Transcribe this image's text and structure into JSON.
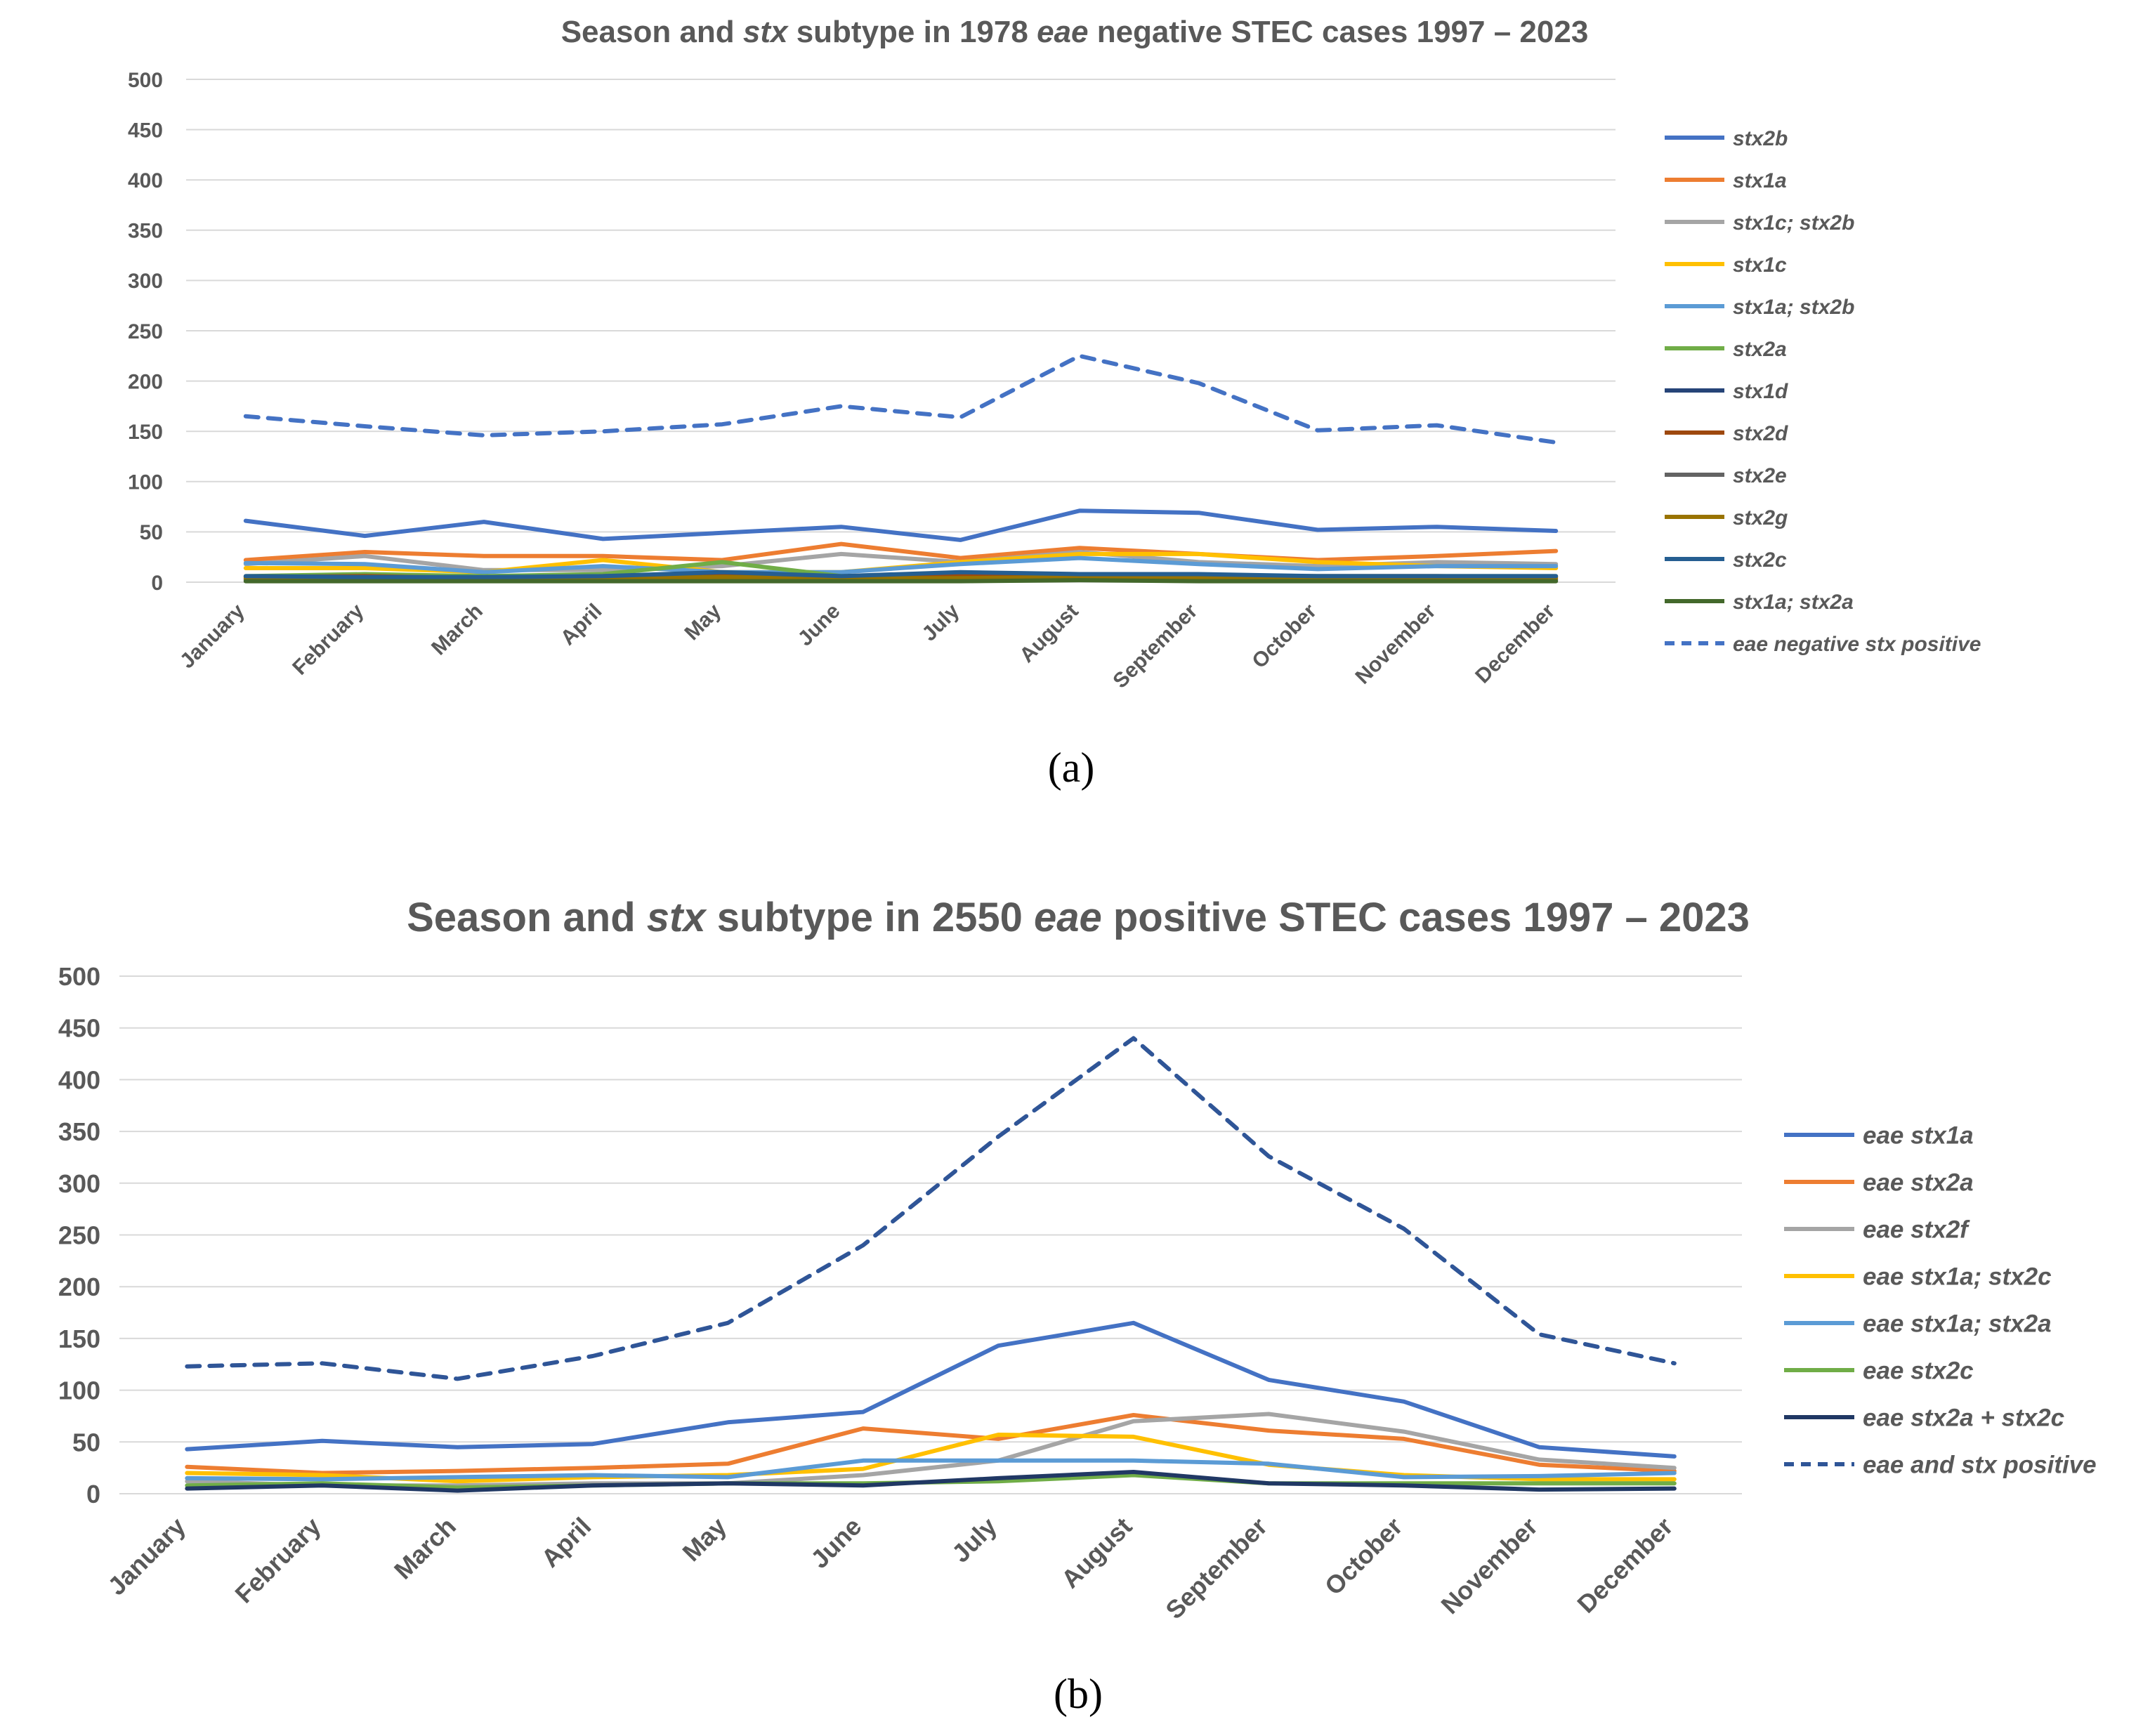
{
  "captions": [
    "(a)",
    "(b)"
  ],
  "chart_data": [
    {
      "type": "line",
      "title_parts": [
        {
          "text": "Season and ",
          "italic": false
        },
        {
          "text": "stx",
          "italic": true
        },
        {
          "text": " subtype in 1978 ",
          "italic": false
        },
        {
          "text": "eae",
          "italic": true
        },
        {
          "text": " negative STEC cases 1997 – 2023",
          "italic": false
        }
      ],
      "categories": [
        "January",
        "February",
        "March",
        "April",
        "May",
        "June",
        "July",
        "August",
        "September",
        "October",
        "November",
        "December"
      ],
      "ylim": [
        0,
        500
      ],
      "yticks": [
        0,
        50,
        100,
        150,
        200,
        250,
        300,
        350,
        400,
        450,
        500
      ],
      "grid": true,
      "legend_position": "right",
      "series": [
        {
          "name": "stx2b",
          "color": "#4472C4",
          "dashed": false,
          "values": [
            61,
            46,
            60,
            43,
            49,
            55,
            42,
            71,
            69,
            52,
            55,
            51
          ]
        },
        {
          "name": "stx1a",
          "color": "#ED7D31",
          "dashed": false,
          "values": [
            22,
            30,
            26,
            26,
            22,
            38,
            24,
            34,
            28,
            22,
            26,
            31
          ]
        },
        {
          "name": "stx1c; stx2b",
          "color": "#A5A5A5",
          "dashed": false,
          "values": [
            18,
            26,
            12,
            12,
            16,
            28,
            20,
            30,
            20,
            16,
            20,
            18
          ]
        },
        {
          "name": "stx1c",
          "color": "#FFC000",
          "dashed": false,
          "values": [
            14,
            14,
            10,
            22,
            10,
            10,
            20,
            28,
            28,
            20,
            16,
            14
          ]
        },
        {
          "name": "stx1a; stx2b",
          "color": "#5B9BD5",
          "dashed": false,
          "values": [
            19,
            18,
            10,
            16,
            10,
            10,
            18,
            24,
            18,
            13,
            16,
            16
          ]
        },
        {
          "name": "stx2a",
          "color": "#70AD47",
          "dashed": false,
          "values": [
            6,
            8,
            6,
            8,
            20,
            6,
            6,
            6,
            6,
            6,
            6,
            6
          ]
        },
        {
          "name": "stx1d",
          "color": "#264478",
          "dashed": false,
          "values": [
            2,
            3,
            2,
            3,
            2,
            3,
            4,
            3,
            2,
            2,
            2,
            2
          ]
        },
        {
          "name": "stx2d",
          "color": "#9E480E",
          "dashed": false,
          "values": [
            5,
            6,
            4,
            6,
            8,
            5,
            6,
            8,
            6,
            6,
            6,
            5
          ]
        },
        {
          "name": "stx2e",
          "color": "#636363",
          "dashed": false,
          "values": [
            3,
            4,
            3,
            4,
            4,
            3,
            4,
            4,
            3,
            3,
            3,
            3
          ]
        },
        {
          "name": "stx2g",
          "color": "#997300",
          "dashed": false,
          "values": [
            4,
            4,
            3,
            4,
            5,
            4,
            4,
            5,
            4,
            4,
            4,
            4
          ]
        },
        {
          "name": "stx2c",
          "color": "#255E91",
          "dashed": false,
          "values": [
            6,
            5,
            5,
            6,
            10,
            6,
            10,
            8,
            8,
            6,
            6,
            6
          ]
        },
        {
          "name": "stx1a; stx2a",
          "color": "#43682B",
          "dashed": false,
          "values": [
            1,
            1,
            1,
            1,
            1,
            1,
            1,
            2,
            1,
            1,
            1,
            1
          ]
        },
        {
          "name": "eae negative stx positive",
          "color": "#4472C4",
          "dashed": true,
          "values": [
            165,
            155,
            146,
            150,
            157,
            175,
            164,
            225,
            198,
            151,
            156,
            139
          ]
        }
      ]
    },
    {
      "type": "line",
      "title_parts": [
        {
          "text": "Season and ",
          "italic": false
        },
        {
          "text": "stx",
          "italic": true
        },
        {
          "text": " subtype in 2550 ",
          "italic": false
        },
        {
          "text": "eae",
          "italic": true
        },
        {
          "text": " positive STEC cases 1997 – 2023",
          "italic": false
        }
      ],
      "categories": [
        "January",
        "February",
        "March",
        "April",
        "May",
        "June",
        "July",
        "August",
        "September",
        "October",
        "November",
        "December"
      ],
      "ylim": [
        0,
        500
      ],
      "yticks": [
        0,
        50,
        100,
        150,
        200,
        250,
        300,
        350,
        400,
        450,
        500
      ],
      "grid": true,
      "legend_position": "right",
      "series": [
        {
          "name": "eae stx1a",
          "color": "#4472C4",
          "dashed": false,
          "values": [
            43,
            51,
            45,
            48,
            69,
            79,
            143,
            165,
            110,
            89,
            45,
            36
          ]
        },
        {
          "name": "eae stx2a",
          "color": "#ED7D31",
          "dashed": false,
          "values": [
            26,
            20,
            22,
            25,
            29,
            63,
            53,
            76,
            61,
            53,
            28,
            22
          ]
        },
        {
          "name": "eae stx2f",
          "color": "#A5A5A5",
          "dashed": false,
          "values": [
            12,
            8,
            8,
            10,
            10,
            18,
            32,
            70,
            77,
            60,
            33,
            25
          ]
        },
        {
          "name": "eae stx1a; stx2c",
          "color": "#FFC000",
          "dashed": false,
          "values": [
            20,
            18,
            12,
            16,
            18,
            24,
            57,
            55,
            28,
            18,
            14,
            14
          ]
        },
        {
          "name": "eae stx1a; stx2a",
          "color": "#5B9BD5",
          "dashed": false,
          "values": [
            15,
            14,
            16,
            18,
            16,
            32,
            32,
            32,
            29,
            16,
            17,
            20
          ]
        },
        {
          "name": "eae stx2c",
          "color": "#70AD47",
          "dashed": false,
          "values": [
            8,
            10,
            6,
            8,
            10,
            10,
            12,
            18,
            10,
            10,
            10,
            10
          ]
        },
        {
          "name": "eae stx2a + stx2c",
          "color": "#203864",
          "dashed": false,
          "values": [
            5,
            8,
            3,
            8,
            10,
            8,
            15,
            21,
            10,
            8,
            4,
            5
          ]
        },
        {
          "name": "eae  and stx positive",
          "color": "#2F5597",
          "dashed": true,
          "values": [
            123,
            126,
            111,
            133,
            165,
            240,
            345,
            440,
            326,
            256,
            154,
            126
          ]
        }
      ]
    }
  ]
}
